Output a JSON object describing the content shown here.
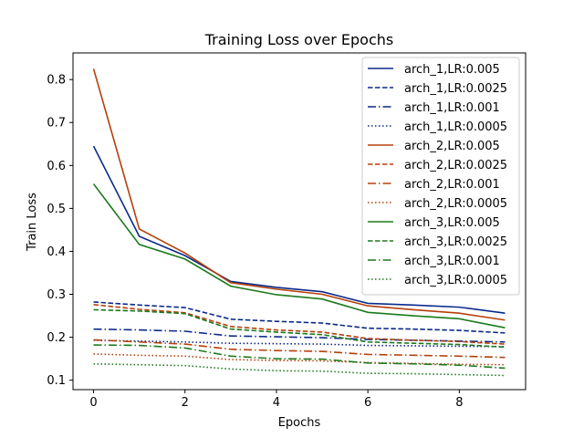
{
  "chart_data": {
    "type": "line",
    "title": "Training Loss over Epochs",
    "xlabel": "Epochs",
    "ylabel": "Train Loss",
    "xlim": [
      -0.45,
      9.45
    ],
    "ylim": [
      0.078,
      0.862
    ],
    "xticks": [
      0,
      2,
      4,
      6,
      8
    ],
    "yticks": [
      0.1,
      0.2,
      0.3,
      0.4,
      0.5,
      0.6,
      0.7,
      0.8
    ],
    "x": [
      0,
      1,
      2,
      3,
      4,
      5,
      6,
      7,
      8,
      9
    ],
    "legend_position": "top-right",
    "grid": false,
    "series": [
      {
        "name": "arch_1,LR:0.005",
        "color": "#0b2a8a",
        "dash": "solid",
        "values": [
          0.645,
          0.435,
          0.39,
          0.33,
          0.316,
          0.306,
          0.279,
          0.275,
          0.27,
          0.256
        ]
      },
      {
        "name": "arch_1,LR:0.0025",
        "color": "#0b2a8a",
        "dash": "dashed",
        "values": [
          0.282,
          0.275,
          0.269,
          0.242,
          0.237,
          0.233,
          0.221,
          0.219,
          0.216,
          0.21
        ]
      },
      {
        "name": "arch_1,LR:0.001",
        "color": "#0b2a8a",
        "dash": "dashdot",
        "values": [
          0.219,
          0.217,
          0.214,
          0.203,
          0.201,
          0.199,
          0.195,
          0.193,
          0.191,
          0.189
        ]
      },
      {
        "name": "arch_1,LR:0.0005",
        "color": "#0b2a8a",
        "dash": "dotted",
        "values": [
          0.193,
          0.191,
          0.189,
          0.186,
          0.185,
          0.184,
          0.181,
          0.18,
          0.179,
          0.178
        ]
      },
      {
        "name": "arch_2,LR:0.005",
        "color": "#b5400c",
        "dash": "solid",
        "values": [
          0.825,
          0.452,
          0.396,
          0.327,
          0.312,
          0.3,
          0.273,
          0.264,
          0.256,
          0.24
        ]
      },
      {
        "name": "arch_2,LR:0.0025",
        "color": "#b5400c",
        "dash": "dashed",
        "values": [
          0.276,
          0.265,
          0.257,
          0.225,
          0.217,
          0.212,
          0.197,
          0.193,
          0.19,
          0.184
        ]
      },
      {
        "name": "arch_2,LR:0.001",
        "color": "#b5400c",
        "dash": "dashdot",
        "values": [
          0.194,
          0.189,
          0.184,
          0.172,
          0.169,
          0.167,
          0.16,
          0.158,
          0.156,
          0.153
        ]
      },
      {
        "name": "arch_2,LR:0.0005",
        "color": "#b5400c",
        "dash": "dotted",
        "values": [
          0.161,
          0.158,
          0.156,
          0.148,
          0.146,
          0.145,
          0.141,
          0.139,
          0.137,
          0.136
        ]
      },
      {
        "name": "arch_3,LR:0.005",
        "color": "#1c7a1c",
        "dash": "solid",
        "values": [
          0.557,
          0.416,
          0.382,
          0.319,
          0.299,
          0.289,
          0.258,
          0.25,
          0.243,
          0.222
        ]
      },
      {
        "name": "arch_3,LR:0.0025",
        "color": "#1c7a1c",
        "dash": "dashed",
        "values": [
          0.264,
          0.261,
          0.255,
          0.219,
          0.212,
          0.206,
          0.189,
          0.186,
          0.183,
          0.177
        ]
      },
      {
        "name": "arch_3,LR:0.001",
        "color": "#1c7a1c",
        "dash": "dashdot",
        "values": [
          0.182,
          0.181,
          0.175,
          0.156,
          0.15,
          0.149,
          0.14,
          0.138,
          0.135,
          0.128
        ]
      },
      {
        "name": "arch_3,LR:0.0005",
        "color": "#1c7a1c",
        "dash": "dotted",
        "values": [
          0.138,
          0.136,
          0.134,
          0.126,
          0.122,
          0.121,
          0.116,
          0.115,
          0.113,
          0.111
        ]
      }
    ]
  }
}
